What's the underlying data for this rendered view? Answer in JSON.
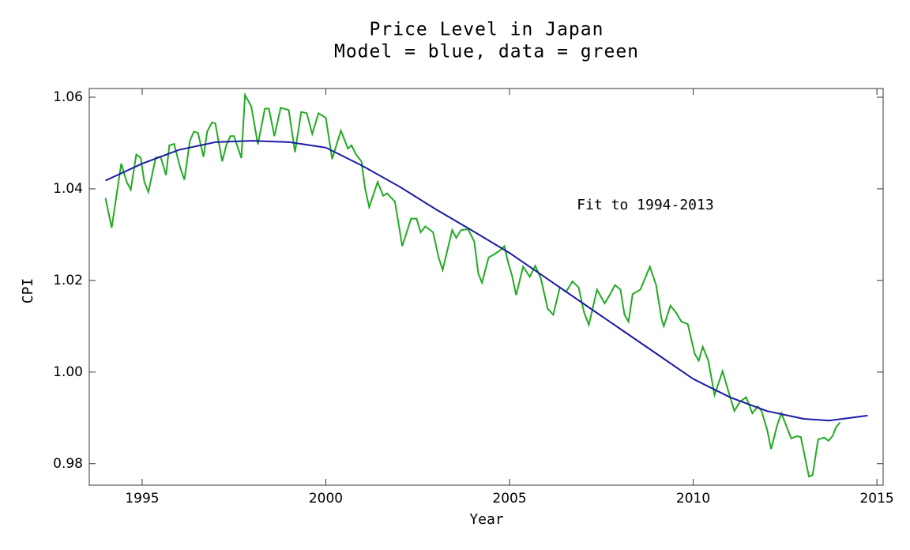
{
  "chart_data": {
    "type": "line",
    "title": "Price Level in Japan",
    "subtitle": "Model = blue, data = green",
    "xlabel": "Year",
    "ylabel": "CPI",
    "annotation": "Fit to 1994-2013",
    "xlim": [
      1993.56,
      2015.17
    ],
    "ylim": [
      0.9753,
      1.0619
    ],
    "xticks": [
      1995,
      2000,
      2005,
      2010,
      2015
    ],
    "yticks": [
      0.98,
      {
        "value": 1,
        "label": "1.00"
      },
      1.02,
      1.04,
      1.06
    ],
    "series": [
      {
        "name": "Model",
        "color": "#1a1aa6",
        "x": [
          1994,
          1995,
          1996,
          1997,
          1998,
          1999,
          2000,
          2001,
          2002,
          2003,
          2004,
          2005,
          2006,
          2007,
          2008,
          2009,
          2010,
          2011,
          2012,
          2013,
          2013.7,
          2014.75
        ],
        "values": [
          1.0418,
          1.0455,
          1.0485,
          1.0502,
          1.0505,
          1.0502,
          1.049,
          1.045,
          1.0405,
          1.0355,
          1.0308,
          1.026,
          1.0205,
          1.015,
          1.0095,
          1.004,
          0.9985,
          0.9945,
          0.9915,
          0.9898,
          0.9894,
          0.9905
        ]
      },
      {
        "name": "Data",
        "color": "#22aa22",
        "x": [
          1994,
          1994.17,
          1994.43,
          1994.58,
          1994.69,
          1994.84,
          1994.96,
          1995.06,
          1995.17,
          1995.37,
          1995.5,
          1995.65,
          1995.74,
          1995.87,
          1996.04,
          1996.15,
          1996.3,
          1996.41,
          1996.52,
          1996.67,
          1996.77,
          1996.9,
          1996.99,
          1997.18,
          1997.29,
          1997.4,
          1997.5,
          1997.7,
          1997.8,
          1997.97,
          1998.15,
          1998.34,
          1998.45,
          1998.6,
          1998.77,
          1998.99,
          1999.16,
          1999.33,
          1999.48,
          1999.63,
          1999.8,
          2000,
          2000.17,
          2000.41,
          2000.6,
          2000.7,
          2000.82,
          2000.97,
          2001.07,
          2001.18,
          2001.41,
          2001.56,
          2001.67,
          2001.88,
          2002.08,
          2002.32,
          2002.47,
          2002.58,
          2002.71,
          2002.92,
          2003.07,
          2003.18,
          2003.44,
          2003.55,
          2003.68,
          2003.87,
          2004.04,
          2004.15,
          2004.25,
          2004.43,
          2004.58,
          2004.73,
          2004.86,
          2004.96,
          2005.07,
          2005.18,
          2005.37,
          2005.55,
          2005.7,
          2005.85,
          2006.04,
          2006.19,
          2006.37,
          2006.54,
          2006.71,
          2006.88,
          2007.03,
          2007.16,
          2007.38,
          2007.59,
          2007.74,
          2007.87,
          2008.02,
          2008.13,
          2008.24,
          2008.35,
          2008.56,
          2008.82,
          2008.99,
          2009.14,
          2009.2,
          2009.38,
          2009.53,
          2009.68,
          2009.85,
          2010.04,
          2010.15,
          2010.26,
          2010.41,
          2010.58,
          2010.8,
          2010.95,
          2011.12,
          2011.27,
          2011.44,
          2011.61,
          2011.76,
          2011.86,
          2012.01,
          2012.12,
          2012.29,
          2012.4,
          2012.57,
          2012.67,
          2012.82,
          2012.93,
          2013.04,
          2013.15,
          2013.25,
          2013.4,
          2013.57,
          2013.68,
          2013.79,
          2013.89,
          2014
        ],
        "values": [
          1.038,
          1.0315,
          1.0455,
          1.0415,
          1.0398,
          1.0475,
          1.0468,
          1.0415,
          1.0393,
          1.0468,
          1.047,
          1.043,
          1.0495,
          1.0498,
          1.0445,
          1.042,
          1.0505,
          1.0525,
          1.0522,
          1.047,
          1.0525,
          1.0545,
          1.0543,
          1.046,
          1.0495,
          1.0515,
          1.0515,
          1.0467,
          1.0605,
          1.058,
          1.0497,
          1.0575,
          1.0575,
          1.0515,
          1.0577,
          1.0572,
          1.048,
          1.0568,
          1.0565,
          1.052,
          1.0565,
          1.0555,
          1.0465,
          1.0527,
          1.0488,
          1.0495,
          1.0475,
          1.046,
          1.04,
          1.036,
          1.0415,
          1.0385,
          1.039,
          1.0372,
          1.0275,
          1.0335,
          1.0335,
          1.0305,
          1.0318,
          1.0305,
          1.025,
          1.0223,
          1.031,
          1.0293,
          1.031,
          1.0312,
          1.0285,
          1.0215,
          1.0195,
          1.025,
          1.0257,
          1.0265,
          1.0275,
          1.024,
          1.021,
          1.0168,
          1.023,
          1.0208,
          1.0232,
          1.0205,
          1.0138,
          1.0125,
          1.0185,
          1.0175,
          1.0198,
          1.0185,
          1.013,
          1.0103,
          1.018,
          1.015,
          1.017,
          1.019,
          1.018,
          1.0125,
          1.011,
          1.017,
          1.018,
          1.023,
          1.019,
          1.0115,
          1.01,
          1.0145,
          1.013,
          1.011,
          1.0105,
          1.004,
          1.0025,
          1.0055,
          1.0025,
          0.995,
          1.0002,
          0.996,
          0.9915,
          0.9935,
          0.9945,
          0.991,
          0.9925,
          0.9915,
          0.9875,
          0.9832,
          0.9885,
          0.991,
          0.9875,
          0.9855,
          0.986,
          0.9858,
          0.9815,
          0.9772,
          0.9775,
          0.9853,
          0.9857,
          0.985,
          0.986,
          0.988,
          0.989
        ]
      }
    ]
  }
}
